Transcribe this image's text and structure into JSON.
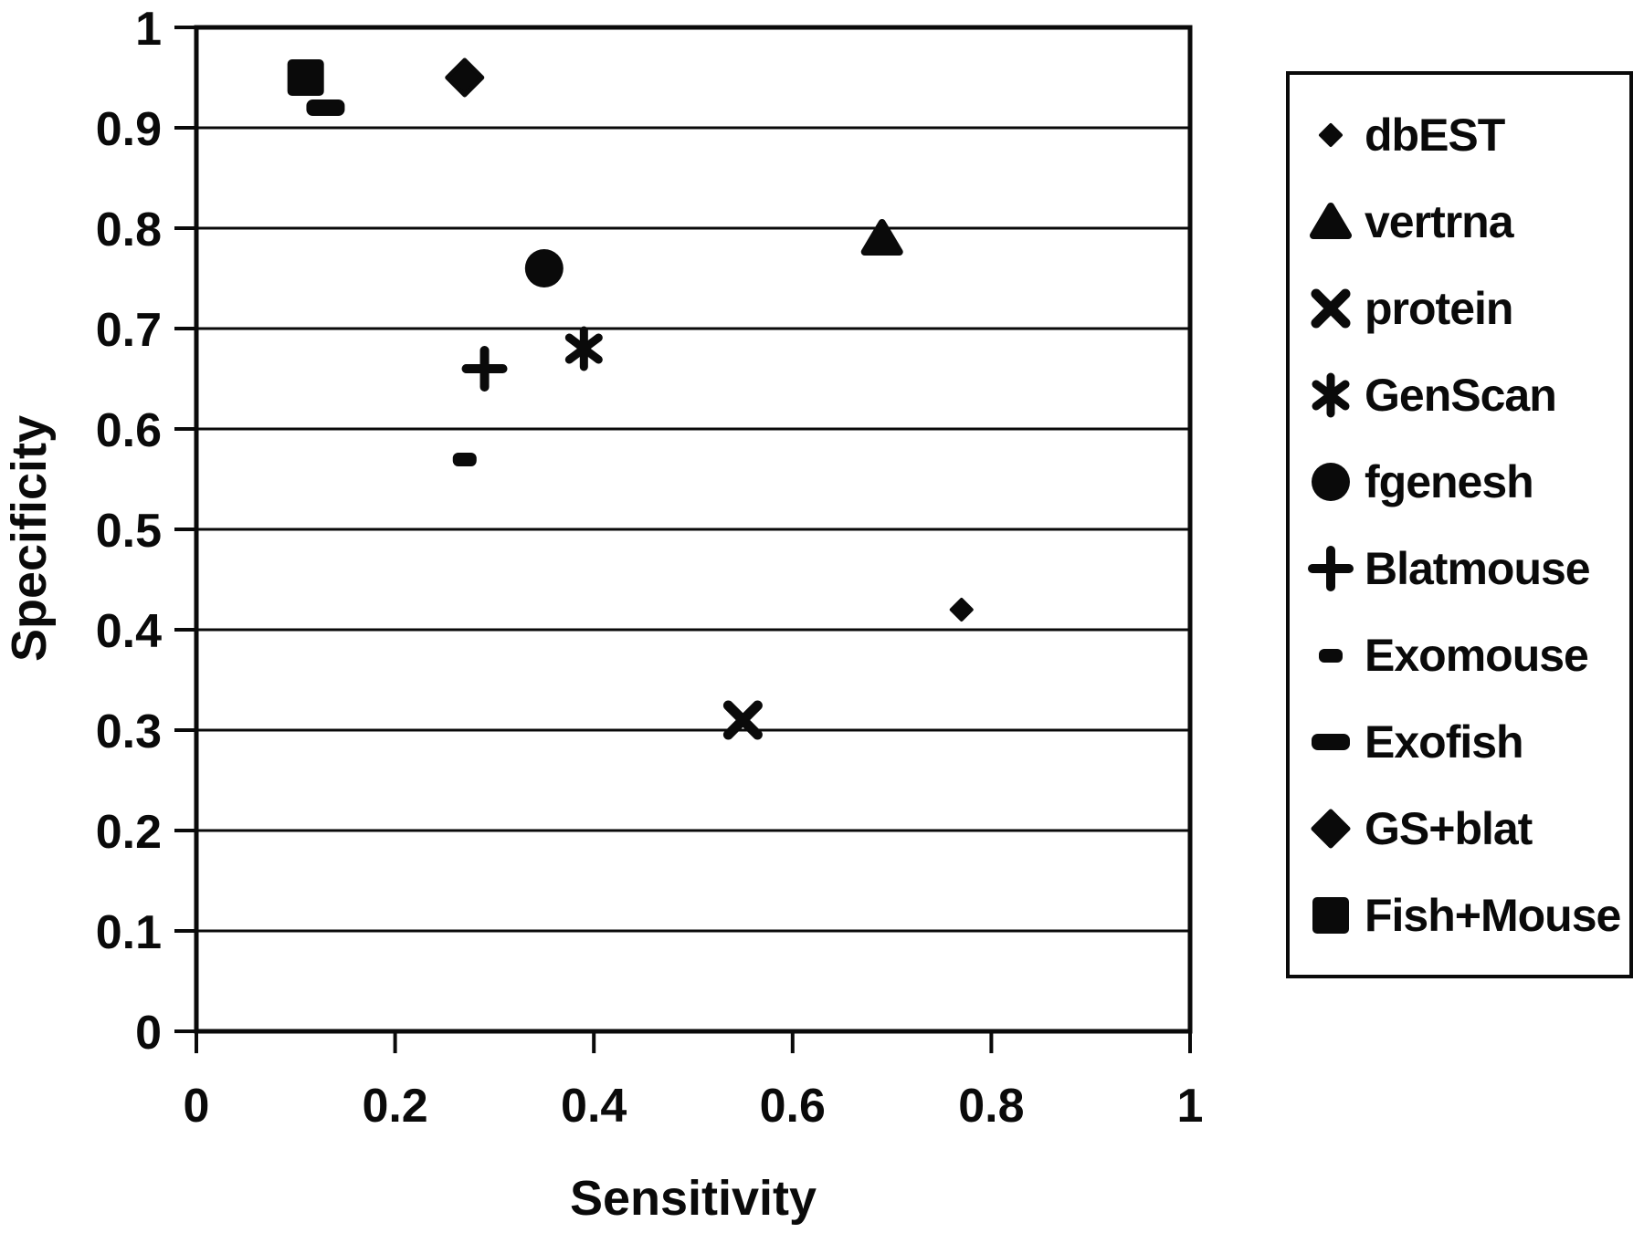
{
  "figure": {
    "background": "#ffffff",
    "ink": "#0a0a0a"
  },
  "chart_data": {
    "type": "scatter",
    "title": "",
    "xlabel": "Sensitivity",
    "ylabel": "Specificity",
    "xlim": [
      0,
      1
    ],
    "ylim": [
      0,
      1
    ],
    "xtick_values": [
      0,
      0.2,
      0.4,
      0.6,
      0.8,
      1
    ],
    "xtick_labels": [
      "0",
      "0.2",
      "0.4",
      "0.6",
      "0.8",
      "1"
    ],
    "ytick_values": [
      0,
      0.1,
      0.2,
      0.3,
      0.4,
      0.5,
      0.6,
      0.7,
      0.8,
      0.9,
      1
    ],
    "ytick_labels": [
      "0",
      "0.1",
      "0.2",
      "0.3",
      "0.4",
      "0.5",
      "0.6",
      "0.7",
      "0.8",
      "0.9",
      "1"
    ],
    "grid": "horizontal",
    "legend_position": "right",
    "series": [
      {
        "name": "dbEST",
        "marker": "diamond-small",
        "points": [
          [
            0.77,
            0.42
          ]
        ]
      },
      {
        "name": "vertrna",
        "marker": "triangle",
        "points": [
          [
            0.69,
            0.79
          ]
        ]
      },
      {
        "name": "protein",
        "marker": "x",
        "points": [
          [
            0.55,
            0.31
          ]
        ]
      },
      {
        "name": "GenScan",
        "marker": "asterisk",
        "points": [
          [
            0.39,
            0.68
          ]
        ]
      },
      {
        "name": "fgenesh",
        "marker": "circle",
        "points": [
          [
            0.35,
            0.76
          ]
        ]
      },
      {
        "name": "Blatmouse",
        "marker": "plus",
        "points": [
          [
            0.29,
            0.66
          ]
        ]
      },
      {
        "name": "Exomouse",
        "marker": "dash-small",
        "points": [
          [
            0.27,
            0.57
          ]
        ]
      },
      {
        "name": "Exofish",
        "marker": "dash",
        "points": [
          [
            0.13,
            0.92
          ]
        ]
      },
      {
        "name": "GS+blat",
        "marker": "diamond",
        "points": [
          [
            0.27,
            0.95
          ]
        ]
      },
      {
        "name": "Fish+Mouse",
        "marker": "square",
        "points": [
          [
            0.11,
            0.95
          ]
        ]
      }
    ]
  }
}
